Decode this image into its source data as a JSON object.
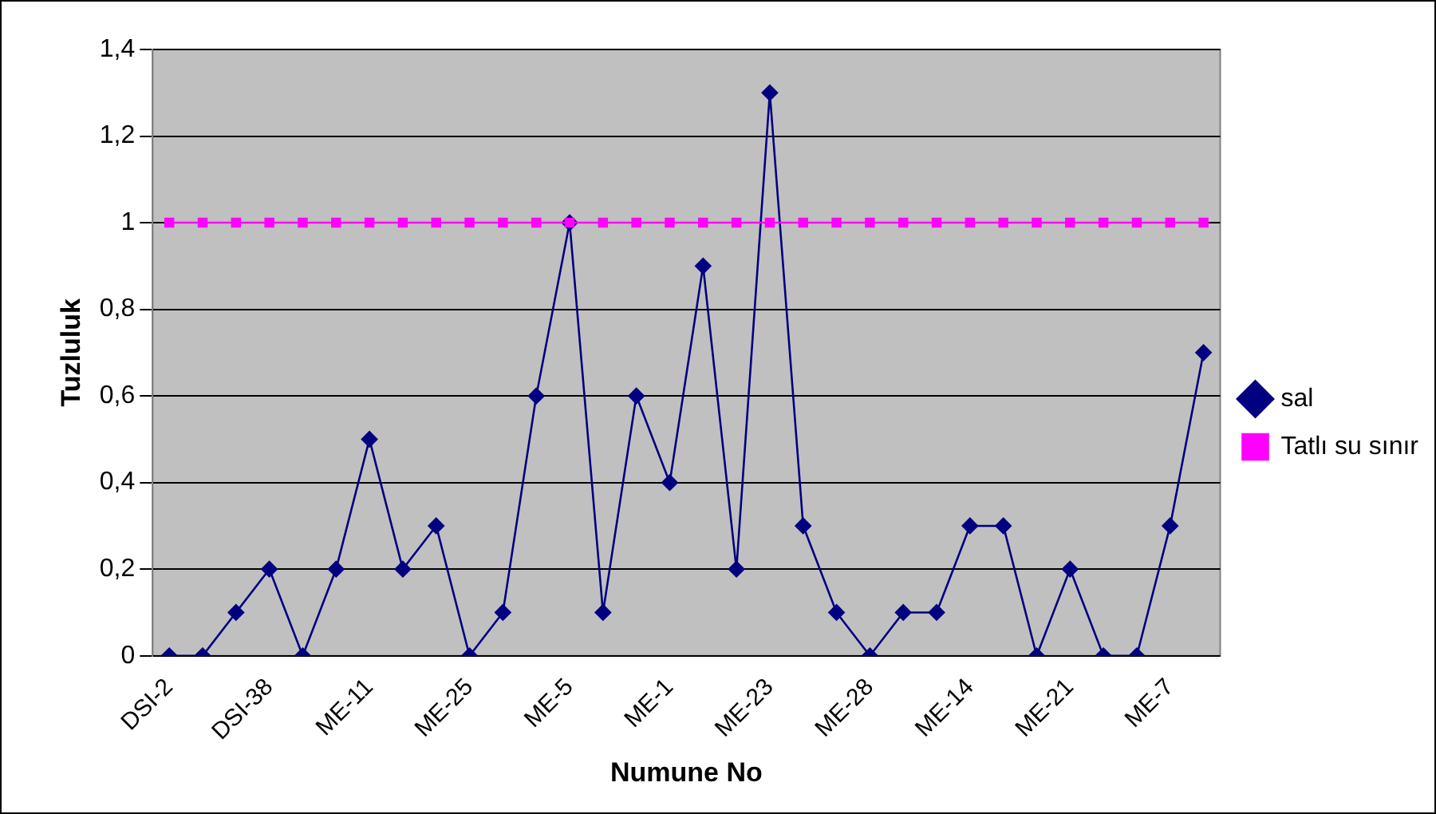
{
  "chart_data": {
    "type": "line",
    "xlabel": "Numune No",
    "ylabel": "Tuzluluk",
    "categories": [
      "DSI-2",
      null,
      null,
      "DSI-38",
      null,
      null,
      "ME-11",
      null,
      null,
      "ME-25",
      null,
      null,
      "ME-5",
      null,
      null,
      "ME-1",
      null,
      null,
      "ME-23",
      null,
      null,
      "ME-28",
      null,
      null,
      "ME-14",
      null,
      null,
      "ME-21",
      null,
      null,
      "ME-7",
      null
    ],
    "series": [
      {
        "name": "sal",
        "color": "#000080",
        "marker": "diamond",
        "values": [
          0,
          0,
          0.1,
          0.2,
          0,
          0.2,
          0.5,
          0.2,
          0.3,
          0,
          0.1,
          0.6,
          1.0,
          0.1,
          0.6,
          0.4,
          0.9,
          0.2,
          1.3,
          0.3,
          0.1,
          0,
          0.1,
          0.1,
          0.3,
          0.3,
          0,
          0.2,
          0,
          0,
          0.3,
          0.7
        ]
      },
      {
        "name": "Tatlı su sınır",
        "color": "#ff00ff",
        "marker": "square",
        "values": [
          1,
          1,
          1,
          1,
          1,
          1,
          1,
          1,
          1,
          1,
          1,
          1,
          1,
          1,
          1,
          1,
          1,
          1,
          1,
          1,
          1,
          1,
          1,
          1,
          1,
          1,
          1,
          1,
          1,
          1,
          1,
          1
        ]
      }
    ],
    "ylim": [
      0,
      1.4
    ],
    "yticks": [
      {
        "value": 0,
        "label": "0"
      },
      {
        "value": 0.2,
        "label": "0,2"
      },
      {
        "value": 0.4,
        "label": "0,4"
      },
      {
        "value": 0.6,
        "label": "0,6"
      },
      {
        "value": 0.8,
        "label": "0,8"
      },
      {
        "value": 1,
        "label": "1"
      },
      {
        "value": 1.2,
        "label": "1,2"
      },
      {
        "value": 1.4,
        "label": "1,4"
      }
    ],
    "grid": "y",
    "legend": "right"
  }
}
